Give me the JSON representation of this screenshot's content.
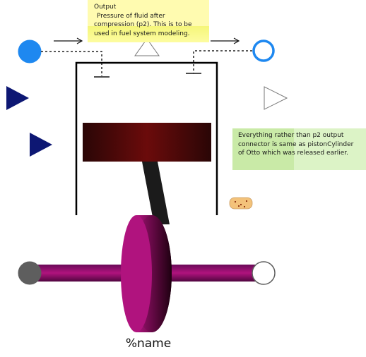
{
  "diagram": {
    "name_label": "%name"
  },
  "notes": {
    "output": {
      "lines": [
        "Output",
        " Pressure of fluid after",
        "compression (p2). This is to be",
        "used in fuel system modeling."
      ]
    },
    "otto": {
      "lines": [
        "Everything rather than p2 output",
        "connector is same as pistonCylinder",
        "of Otto which was released earlier."
      ]
    }
  },
  "colors": {
    "port_blue": "#1e88f0",
    "input_triangle": "#0d1773",
    "crank_magenta": "#b0137e",
    "piston_dark": "#3a0a0a",
    "piston_mid": "#6e0a0a",
    "note_yellow": "#fffbb0",
    "note_green": "#c9eaa7"
  },
  "icons": {
    "heat_port": "heat-port-icon",
    "output_triangle": "output-triangle-icon",
    "input_triangle": "input-triangle-icon",
    "port_filled": "flange-port-filled-icon",
    "port_hollow": "flange-port-hollow-icon",
    "shaft_left": "shaft-flange-filled-icon",
    "shaft_right": "shaft-flange-hollow-icon"
  }
}
